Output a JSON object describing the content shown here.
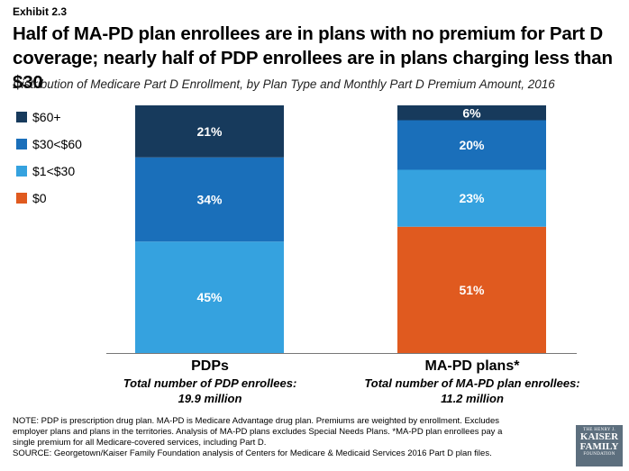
{
  "exhibit": "Exhibit 2.3",
  "title": "Half of MA-PD plan enrollees are in plans with no premium for Part D coverage; nearly half of PDP enrollees are in plans charging less than $30",
  "subtitle": "Distribution of Medicare Part D Enrollment, by Plan Type and Monthly Part D Premium Amount, 2016",
  "chart_data": {
    "type": "bar",
    "stacked": true,
    "percent": true,
    "categories": [
      "PDPs",
      "MA-PD plans*"
    ],
    "series": [
      {
        "name": "$0",
        "values": [
          0,
          51
        ],
        "color": "#e05a1f"
      },
      {
        "name": "$1<$30",
        "values": [
          45,
          23
        ],
        "color": "#35a2df"
      },
      {
        "name": "$30<$60",
        "values": [
          34,
          20
        ],
        "color": "#1a6fba"
      },
      {
        "name": "$60+",
        "values": [
          21,
          6
        ],
        "color": "#173a5c"
      }
    ],
    "data_labels": [
      [
        "",
        "51%"
      ],
      [
        "45%",
        "23%"
      ],
      [
        "34%",
        "20%"
      ],
      [
        "21%",
        "6%"
      ]
    ],
    "legend": [
      "$60+",
      "$30<$60",
      "$1<$30",
      "$0"
    ],
    "legend_position": "top-left",
    "ylim": [
      0,
      100
    ]
  },
  "bars": [
    {
      "label": "PDPs",
      "sub1": "Total number of PDP enrollees:",
      "sub2": "19.9 million"
    },
    {
      "label": "MA-PD plans*",
      "sub1": "Total number of MA-PD plan enrollees:",
      "sub2": "11.2 million"
    }
  ],
  "notes": {
    "line1": "NOTE: PDP is prescription drug plan. MA-PD is Medicare Advantage drug plan. Premiums are weighted by enrollment. Excludes",
    "line2": "employer plans and plans in the territories. Analysis of MA-PD plans excludes Special Needs Plans. *MA-PD plan enrollees pay a",
    "line3": "single premium for all Medicare-covered services, including Part D.",
    "line4": "SOURCE: Georgetown/Kaiser Family Foundation analysis of Centers for Medicare & Medicaid Services 2016 Part D plan files."
  },
  "logo": {
    "line1": "THE HENRY J.",
    "line2": "KAISER",
    "line3": "FAMILY",
    "line4": "FOUNDATION"
  }
}
